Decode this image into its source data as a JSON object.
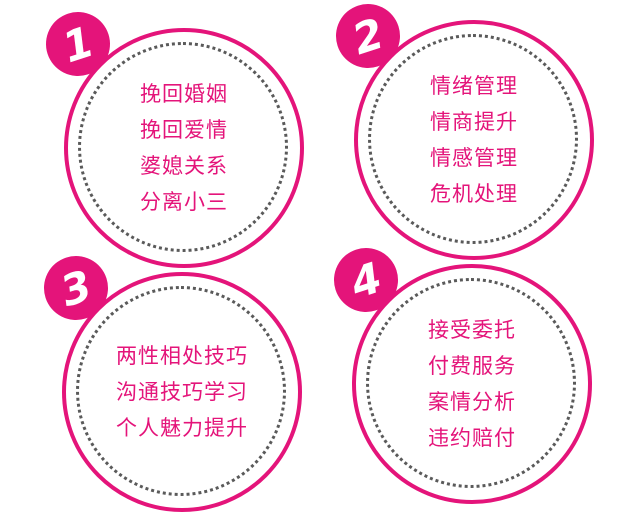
{
  "cards": [
    {
      "number": "1",
      "lines": [
        "挽回婚姻",
        "挽回爱情",
        "婆媳关系",
        "分离小三"
      ]
    },
    {
      "number": "2",
      "lines": [
        "情绪管理",
        "情商提升",
        "情感管理",
        "危机处理"
      ]
    },
    {
      "number": "3",
      "lines": [
        "两性相处技巧",
        "沟通技巧学习",
        "个人魅力提升"
      ]
    },
    {
      "number": "4",
      "lines": [
        "接受委托",
        "付费服务",
        "案情分析",
        "违约赔付"
      ]
    }
  ],
  "colors": {
    "accent": "#e4147a",
    "dots": "#5a5a5a",
    "background": "#ffffff"
  }
}
